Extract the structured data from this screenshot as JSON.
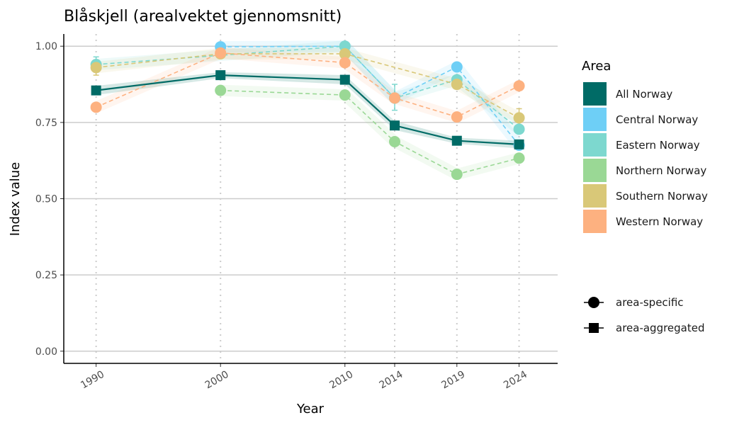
{
  "chart_data": {
    "type": "line",
    "title": "Blåskjell (arealvektet gjennomsnitt)",
    "xlabel": "Year",
    "ylabel": "Index value",
    "x": [
      1990,
      2000,
      2010,
      2014,
      2019,
      2024
    ],
    "x_tick_labels": [
      "1990",
      "2000",
      "2010",
      "2014",
      "2019",
      "2024"
    ],
    "ylim": [
      -0.04,
      1.04
    ],
    "y_ticks": [
      0.0,
      0.25,
      0.5,
      0.75,
      1.0
    ],
    "y_tick_labels": [
      "0.00",
      "0.25",
      "0.50",
      "0.75",
      "1.00"
    ],
    "grid": "horizontal major lines; vertical dotted lines at each year",
    "legend_title": "Area",
    "legend_position": "right",
    "series": [
      {
        "name": "All Norway",
        "color": "#006b66",
        "shape": "square",
        "line": "solid",
        "type": "area-aggregated",
        "values": [
          0.855,
          0.905,
          0.89,
          0.74,
          0.69,
          0.678
        ],
        "lower": [
          0.84,
          0.895,
          0.875,
          0.725,
          0.68,
          0.665
        ],
        "upper": [
          0.87,
          0.915,
          0.905,
          0.755,
          0.7,
          0.69
        ]
      },
      {
        "name": "Central Norway",
        "color": "#6ecff6",
        "shape": "circle",
        "line": "dashed",
        "type": "area-specific",
        "values": [
          null,
          0.998,
          1.0,
          0.83,
          0.932,
          0.675
        ]
      },
      {
        "name": "Eastern Norway",
        "color": "#7dd8cf",
        "shape": "circle",
        "line": "dashed",
        "type": "area-specific",
        "values": [
          0.94,
          null,
          1.0,
          0.83,
          0.89,
          0.728
        ],
        "error": [
          [
            0.915,
            0.965
          ],
          null,
          null,
          [
            0.79,
            0.875
          ],
          null,
          null
        ]
      },
      {
        "name": "Northern Norway",
        "color": "#9ad895",
        "shape": "circle",
        "line": "dashed",
        "type": "area-specific",
        "values": [
          null,
          0.855,
          0.84,
          0.687,
          0.58,
          0.633
        ]
      },
      {
        "name": "Southern Norway",
        "color": "#d9c878",
        "shape": "circle",
        "line": "dashed",
        "type": "area-specific",
        "values": [
          0.93,
          0.975,
          0.975,
          null,
          0.875,
          0.765
        ],
        "error": [
          [
            0.905,
            0.955
          ],
          null,
          null,
          null,
          [
            0.86,
            0.89
          ],
          [
            0.735,
            0.795
          ]
        ]
      },
      {
        "name": "Western Norway",
        "color": "#fdb180",
        "shape": "circle",
        "line": "dashed",
        "type": "area-specific",
        "values": [
          0.8,
          0.978,
          0.946,
          0.83,
          0.768,
          0.87
        ]
      }
    ],
    "shape_legend": [
      {
        "label": "area-specific",
        "shape": "circle"
      },
      {
        "label": "area-aggregated",
        "shape": "square"
      }
    ]
  }
}
